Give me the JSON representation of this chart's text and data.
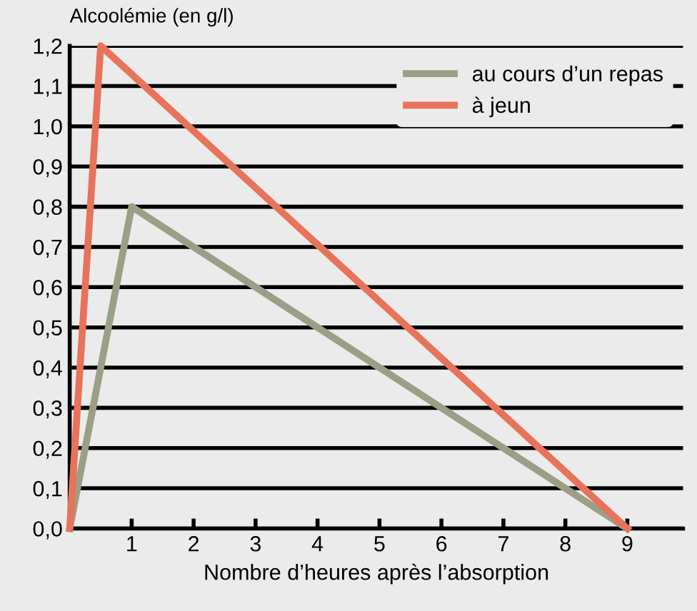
{
  "chart_data": {
    "type": "line",
    "xlabel": "Nombre d’heures après l’absorption",
    "ylabel": "Alcoolémie (en g/l)",
    "series": [
      {
        "name": "au cours d’un repas",
        "color": "#9a9f86",
        "x": [
          0,
          1,
          9
        ],
        "values": [
          0,
          0.8,
          0
        ]
      },
      {
        "name": "à jeun",
        "color": "#e8735a",
        "x": [
          0,
          0.5,
          9
        ],
        "values": [
          0,
          1.2,
          0
        ]
      }
    ],
    "xlim": [
      0,
      9.9
    ],
    "xticks": [
      {
        "value": 0,
        "label": null
      },
      1,
      2,
      3,
      4,
      5,
      6,
      7,
      8,
      9
    ],
    "ylim": [
      0,
      1.2
    ],
    "yticks": [
      {
        "value": 0,
        "label": "0,0"
      },
      {
        "value": 0.1,
        "label": "0,1"
      },
      {
        "value": 0.2,
        "label": "0,2"
      },
      {
        "value": 0.3,
        "label": "0,3"
      },
      {
        "value": 0.4,
        "label": "0,4"
      },
      {
        "value": 0.5,
        "label": "0,5"
      },
      {
        "value": 0.6,
        "label": "0,6"
      },
      {
        "value": 0.7,
        "label": "0,7"
      },
      {
        "value": 0.8,
        "label": "0,8"
      },
      {
        "value": 0.9,
        "label": "0,9"
      },
      {
        "value": 1.0,
        "label": "1,0"
      },
      {
        "value": 1.1,
        "label": "1,1"
      },
      {
        "value": 1.2,
        "label": "1,2"
      }
    ],
    "grid": "y",
    "legend": "top right",
    "marker": "none",
    "line_style": "solid"
  }
}
